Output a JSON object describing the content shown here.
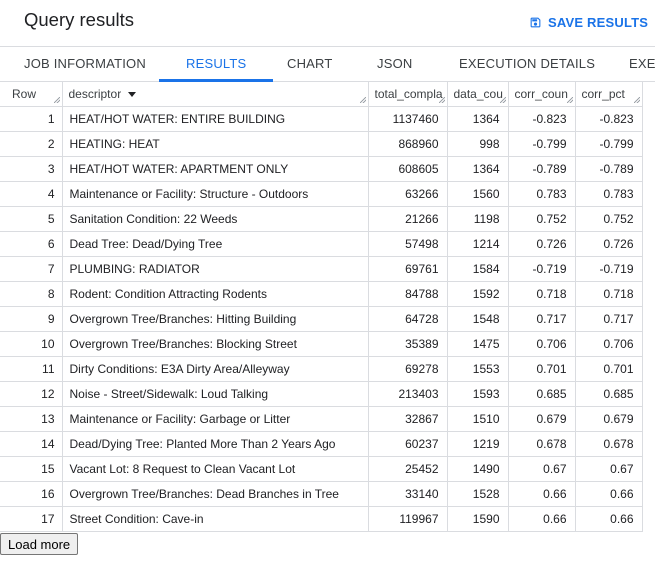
{
  "header": {
    "title": "Query results",
    "save_label": "SAVE RESULTS",
    "save_icon": "save-icon"
  },
  "tabs": [
    {
      "label": "JOB INFORMATION"
    },
    {
      "label": "RESULTS"
    },
    {
      "label": "CHART"
    },
    {
      "label": "JSON"
    },
    {
      "label": "EXECUTION DETAILS"
    },
    {
      "label": "EXEC"
    }
  ],
  "active_tab": "RESULTS",
  "table": {
    "columns": [
      "Row",
      "descriptor",
      "total_compla",
      "data_cou",
      "corr_coun",
      "corr_pct"
    ],
    "rows": [
      {
        "row": "1",
        "descriptor": "HEAT/HOT WATER: ENTIRE BUILDING",
        "total": "1137460",
        "data": "1364",
        "corr_count": "-0.823",
        "corr_pct": "-0.823"
      },
      {
        "row": "2",
        "descriptor": "HEATING: HEAT",
        "total": "868960",
        "data": "998",
        "corr_count": "-0.799",
        "corr_pct": "-0.799"
      },
      {
        "row": "3",
        "descriptor": "HEAT/HOT WATER: APARTMENT ONLY",
        "total": "608605",
        "data": "1364",
        "corr_count": "-0.789",
        "corr_pct": "-0.789"
      },
      {
        "row": "4",
        "descriptor": "Maintenance or Facility: Structure - Outdoors",
        "total": "63266",
        "data": "1560",
        "corr_count": "0.783",
        "corr_pct": "0.783"
      },
      {
        "row": "5",
        "descriptor": "Sanitation Condition: 22 Weeds",
        "total": "21266",
        "data": "1198",
        "corr_count": "0.752",
        "corr_pct": "0.752"
      },
      {
        "row": "6",
        "descriptor": "Dead Tree: Dead/Dying Tree",
        "total": "57498",
        "data": "1214",
        "corr_count": "0.726",
        "corr_pct": "0.726"
      },
      {
        "row": "7",
        "descriptor": "PLUMBING: RADIATOR",
        "total": "69761",
        "data": "1584",
        "corr_count": "-0.719",
        "corr_pct": "-0.719"
      },
      {
        "row": "8",
        "descriptor": "Rodent: Condition Attracting Rodents",
        "total": "84788",
        "data": "1592",
        "corr_count": "0.718",
        "corr_pct": "0.718"
      },
      {
        "row": "9",
        "descriptor": "Overgrown Tree/Branches: Hitting Building",
        "total": "64728",
        "data": "1548",
        "corr_count": "0.717",
        "corr_pct": "0.717"
      },
      {
        "row": "10",
        "descriptor": "Overgrown Tree/Branches: Blocking Street",
        "total": "35389",
        "data": "1475",
        "corr_count": "0.706",
        "corr_pct": "0.706"
      },
      {
        "row": "11",
        "descriptor": "Dirty Conditions: E3A Dirty Area/Alleyway",
        "total": "69278",
        "data": "1553",
        "corr_count": "0.701",
        "corr_pct": "0.701"
      },
      {
        "row": "12",
        "descriptor": "Noise - Street/Sidewalk: Loud Talking",
        "total": "213403",
        "data": "1593",
        "corr_count": "0.685",
        "corr_pct": "0.685"
      },
      {
        "row": "13",
        "descriptor": "Maintenance or Facility: Garbage or Litter",
        "total": "32867",
        "data": "1510",
        "corr_count": "0.679",
        "corr_pct": "0.679"
      },
      {
        "row": "14",
        "descriptor": "Dead/Dying Tree: Planted More Than 2 Years Ago",
        "total": "60237",
        "data": "1219",
        "corr_count": "0.678",
        "corr_pct": "0.678"
      },
      {
        "row": "15",
        "descriptor": "Vacant Lot: 8 Request to Clean Vacant Lot",
        "total": "25452",
        "data": "1490",
        "corr_count": "0.67",
        "corr_pct": "0.67"
      },
      {
        "row": "16",
        "descriptor": "Overgrown Tree/Branches: Dead Branches in Tree",
        "total": "33140",
        "data": "1528",
        "corr_count": "0.66",
        "corr_pct": "0.66"
      },
      {
        "row": "17",
        "descriptor": "Street Condition: Cave-in",
        "total": "119967",
        "data": "1590",
        "corr_count": "0.66",
        "corr_pct": "0.66"
      }
    ]
  },
  "load_more_label": "Load more",
  "colors": {
    "accent": "#1a73e8",
    "border": "#dadce0",
    "text": "#202124"
  }
}
